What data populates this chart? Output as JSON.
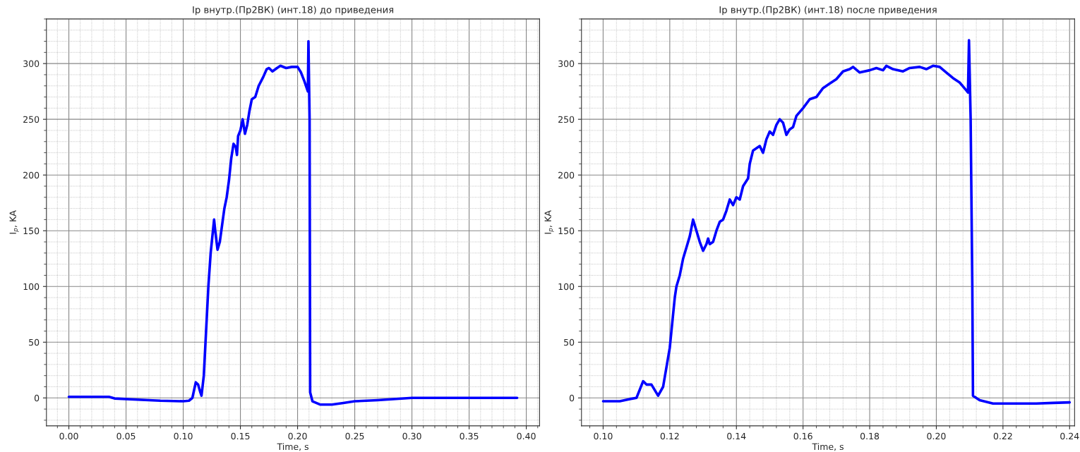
{
  "chart_data": [
    {
      "type": "line",
      "title": "Ip внутр.(Пр2ВК) (инт.18) до приведения",
      "xlabel": "Time, s",
      "ylabel": "I$_{p}$, KA",
      "xlim": [
        -0.0196,
        0.4116
      ],
      "ylim": [
        -25,
        340
      ],
      "xticks": [
        {
          "value": 0.0,
          "label": "0.00"
        },
        0.05,
        {
          "value": 0.1,
          "label": "0.10"
        },
        0.15,
        {
          "value": 0.2,
          "label": "0.20"
        },
        0.25,
        {
          "value": 0.3,
          "label": "0.30"
        },
        0.35,
        {
          "value": 0.4,
          "label": "0.40"
        }
      ],
      "yticks": [
        0,
        50,
        100,
        150,
        200,
        250,
        300
      ],
      "grid": true,
      "line_style": "solid",
      "marker": "none",
      "series": [
        {
          "color": "#0000ff",
          "x": [
            0,
            0.01,
            0.02,
            0.03,
            0.035,
            0.04,
            0.06,
            0.08,
            0.1,
            0.105,
            0.108,
            0.111,
            0.113,
            0.115,
            0.116,
            0.118,
            0.12,
            0.122,
            0.124,
            0.126,
            0.127,
            0.128,
            0.13,
            0.132,
            0.134,
            0.136,
            0.138,
            0.14,
            0.142,
            0.144,
            0.146,
            0.147,
            0.148,
            0.15,
            0.152,
            0.154,
            0.156,
            0.158,
            0.16,
            0.163,
            0.166,
            0.17,
            0.173,
            0.175,
            0.178,
            0.182,
            0.185,
            0.19,
            0.195,
            0.2,
            0.203,
            0.206,
            0.209,
            0.2095,
            0.2105,
            0.211,
            0.213,
            0.22,
            0.23,
            0.24,
            0.25,
            0.27,
            0.3,
            0.35,
            0.392
          ],
          "values": [
            1,
            1,
            1,
            1,
            1,
            -0.5,
            -1.5,
            -2.5,
            -3,
            -2.5,
            0,
            14,
            12,
            5,
            2,
            20,
            60,
            100,
            130,
            150,
            160,
            150,
            133,
            140,
            155,
            170,
            180,
            195,
            215,
            228,
            225,
            218,
            235,
            240,
            250,
            237,
            245,
            258,
            268,
            270,
            280,
            288,
            295,
            296,
            293,
            296,
            298,
            296,
            297,
            297,
            292,
            284,
            275,
            320,
            250,
            5,
            -3,
            -6,
            -6,
            -4.5,
            -3,
            -2,
            0,
            0,
            0
          ]
        }
      ]
    },
    {
      "type": "line",
      "title": "Ip внутр.(Пр2ВК) (инт.18) после приведения",
      "xlabel": "Time, s",
      "ylabel": "I$_{p}$, KA",
      "xlim": [
        0.0935,
        0.2415
      ],
      "ylim": [
        -25,
        340
      ],
      "xticks": [
        {
          "value": 0.1,
          "label": "0.10"
        },
        0.12,
        0.14,
        0.16,
        0.18,
        {
          "value": 0.2,
          "label": "0.20"
        },
        0.22,
        0.24
      ],
      "yticks": [
        0,
        50,
        100,
        150,
        200,
        250,
        300
      ],
      "grid": true,
      "line_style": "solid",
      "marker": "none",
      "series": [
        {
          "color": "#0000ff",
          "x": [
            0.1,
            0.105,
            0.108,
            0.11,
            0.112,
            0.113,
            0.1145,
            0.1165,
            0.118,
            0.12,
            0.1215,
            0.122,
            0.123,
            0.124,
            0.125,
            0.126,
            0.127,
            0.128,
            0.129,
            0.13,
            0.131,
            0.1315,
            0.132,
            0.133,
            0.134,
            0.135,
            0.136,
            0.137,
            0.138,
            0.139,
            0.14,
            0.141,
            0.142,
            0.1435,
            0.144,
            0.145,
            0.147,
            0.148,
            0.149,
            0.15,
            0.151,
            0.152,
            0.153,
            0.154,
            0.155,
            0.156,
            0.157,
            0.158,
            0.16,
            0.162,
            0.164,
            0.166,
            0.168,
            0.17,
            0.172,
            0.174,
            0.175,
            0.177,
            0.18,
            0.182,
            0.184,
            0.185,
            0.187,
            0.19,
            0.192,
            0.195,
            0.197,
            0.199,
            0.201,
            0.203,
            0.205,
            0.207,
            0.209,
            0.2095,
            0.2098,
            0.2103,
            0.2108,
            0.211,
            0.213,
            0.217,
            0.22,
            0.225,
            0.23,
            0.235,
            0.24
          ],
          "values": [
            -3,
            -3,
            -1,
            0,
            15,
            12,
            12,
            2,
            10,
            45,
            90,
            100,
            110,
            125,
            135,
            145,
            160,
            150,
            140,
            132,
            138,
            143,
            138,
            140,
            150,
            158,
            160,
            168,
            178,
            173,
            180,
            178,
            190,
            197,
            210,
            222,
            226,
            220,
            232,
            239,
            236,
            245,
            250,
            247,
            236,
            241,
            243,
            253,
            260,
            268,
            270,
            278,
            282,
            286,
            293,
            295,
            297,
            292,
            294,
            296,
            294,
            298,
            295,
            293,
            296,
            297,
            295,
            298,
            297,
            292,
            287,
            283,
            276,
            274,
            321,
            250,
            100,
            2,
            -2,
            -5,
            -5,
            -5,
            -5,
            -4.5,
            -4
          ]
        }
      ]
    }
  ]
}
